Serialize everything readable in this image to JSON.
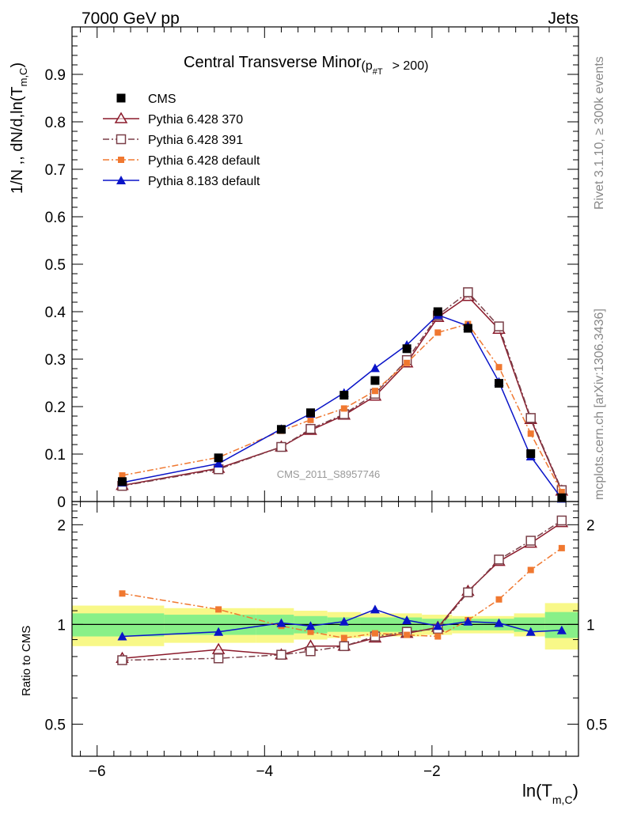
{
  "header": {
    "left": "7000 GeV pp",
    "right": "Jets"
  },
  "side_labels": {
    "rivet": "Rivet 3.1.10, ≥ 300k events",
    "mcplots": "mcplots.cern.ch [arXiv:1306.3436]"
  },
  "watermark": "CMS_2011_S8957746",
  "chart_data": [
    {
      "type": "line",
      "panel": "main",
      "title_main": "Central Transverse Minor",
      "title_cut": "(p",
      "title_cut_sub": "#T",
      "title_cut_rest": "> 200)",
      "ylabel": "1/N ,, dN/d,ln(T",
      "ylabel_sub": "m,C",
      "ylabel_end": ")",
      "ylim": [
        0,
        1.0
      ],
      "xlim": [
        -6.3,
        -0.25
      ],
      "yticks": [
        0,
        0.1,
        0.2,
        0.3,
        0.4,
        0.5,
        0.6,
        0.7,
        0.8,
        0.9
      ],
      "ytick_labels": [
        "0",
        "0.1",
        "0.2",
        "0.3",
        "0.4",
        "0.5",
        "0.6",
        "0.7",
        "0.8",
        "0.9"
      ],
      "legend_position": "top-left",
      "x": [
        -5.7,
        -4.55,
        -3.8,
        -3.45,
        -3.05,
        -2.68,
        -2.3,
        -1.93,
        -1.57,
        -1.2,
        -0.82,
        -0.45
      ],
      "series": [
        {
          "name": "CMS",
          "color": "#000000",
          "marker": "square",
          "line": "none",
          "values": [
            0.042,
            0.092,
            0.152,
            0.187,
            0.224,
            0.255,
            0.322,
            0.4,
            0.365,
            0.249,
            0.101,
            0.008
          ]
        },
        {
          "name": "Pythia 6.428 370",
          "color": "#8b1a2b",
          "marker": "open-triangle",
          "line": "solid",
          "values": [
            0.034,
            0.07,
            0.115,
            0.15,
            0.182,
            0.222,
            0.292,
            0.388,
            0.432,
            0.363,
            0.173,
            0.022
          ]
        },
        {
          "name": "Pythia 6.428 391",
          "color": "#7a3f48",
          "marker": "open-square",
          "line": "dashdot",
          "values": [
            0.033,
            0.068,
            0.115,
            0.153,
            0.184,
            0.227,
            0.298,
            0.392,
            0.441,
            0.369,
            0.176,
            0.024
          ]
        },
        {
          "name": "Pythia 6.428 default",
          "color": "#f07830",
          "marker": "small-square",
          "line": "dashdot",
          "values": [
            0.055,
            0.093,
            0.149,
            0.172,
            0.196,
            0.233,
            0.292,
            0.356,
            0.374,
            0.283,
            0.143,
            0.02
          ]
        },
        {
          "name": "Pythia 8.183 default",
          "color": "#0a14c8",
          "marker": "triangle",
          "line": "solid",
          "values": [
            0.04,
            0.08,
            0.153,
            0.185,
            0.229,
            0.281,
            0.33,
            0.393,
            0.37,
            0.252,
            0.095,
            0.006
          ]
        }
      ]
    },
    {
      "type": "line",
      "panel": "ratio",
      "xlabel": "ln(T",
      "xlabel_sub": "m,C",
      "xlabel_end": ")",
      "ylabel": "Ratio to CMS",
      "yscale": "log",
      "ylim": [
        0.4,
        2.35
      ],
      "xlim": [
        -6.3,
        -0.25
      ],
      "yticks": [
        0.5,
        1,
        2
      ],
      "ytick_labels": [
        "0.5",
        "1",
        "2"
      ],
      "xticks": [
        -6,
        -4,
        -2
      ],
      "xtick_labels": [
        "−6",
        "−4",
        "−2"
      ],
      "x": [
        -5.7,
        -4.55,
        -3.8,
        -3.45,
        -3.05,
        -2.68,
        -2.3,
        -1.93,
        -1.57,
        -1.2,
        -0.82,
        -0.45
      ],
      "series": [
        {
          "name": "Pythia 6.428 370",
          "color": "#8b1a2b",
          "marker": "open-triangle",
          "line": "solid",
          "values": [
            0.79,
            0.84,
            0.81,
            0.86,
            0.86,
            0.91,
            0.94,
            0.98,
            1.26,
            1.55,
            1.76,
            2.03
          ]
        },
        {
          "name": "Pythia 6.428 391",
          "color": "#7a3f48",
          "marker": "open-square",
          "line": "dashdot",
          "values": [
            0.78,
            0.79,
            0.81,
            0.83,
            0.86,
            0.92,
            0.95,
            0.97,
            1.25,
            1.57,
            1.79,
            2.06
          ]
        },
        {
          "name": "Pythia 6.428 default",
          "color": "#f07830",
          "marker": "small-square",
          "line": "dashdot",
          "values": [
            1.24,
            1.11,
            0.99,
            0.95,
            0.91,
            0.94,
            0.93,
            0.92,
            1.03,
            1.19,
            1.46,
            1.7
          ]
        },
        {
          "name": "Pythia 8.183 default",
          "color": "#0a14c8",
          "marker": "triangle",
          "line": "solid",
          "values": [
            0.92,
            0.95,
            1.01,
            0.99,
            1.02,
            1.11,
            1.03,
            0.99,
            1.02,
            1.01,
            0.95,
            0.96
          ]
        }
      ],
      "uncertainty_bands": {
        "edges": [
          -6.3,
          -5.2,
          -4.1,
          -3.65,
          -3.25,
          -2.85,
          -2.5,
          -2.12,
          -1.76,
          -1.38,
          -1.02,
          -0.65,
          -0.25
        ],
        "inner": [
          0.08,
          0.07,
          0.07,
          0.06,
          0.05,
          0.05,
          0.05,
          0.04,
          0.04,
          0.04,
          0.05,
          0.09
        ],
        "outer": [
          0.14,
          0.12,
          0.12,
          0.1,
          0.09,
          0.08,
          0.08,
          0.07,
          0.06,
          0.06,
          0.08,
          0.16
        ],
        "inner_color": "#88f088",
        "outer_color": "#f8f888"
      }
    }
  ]
}
